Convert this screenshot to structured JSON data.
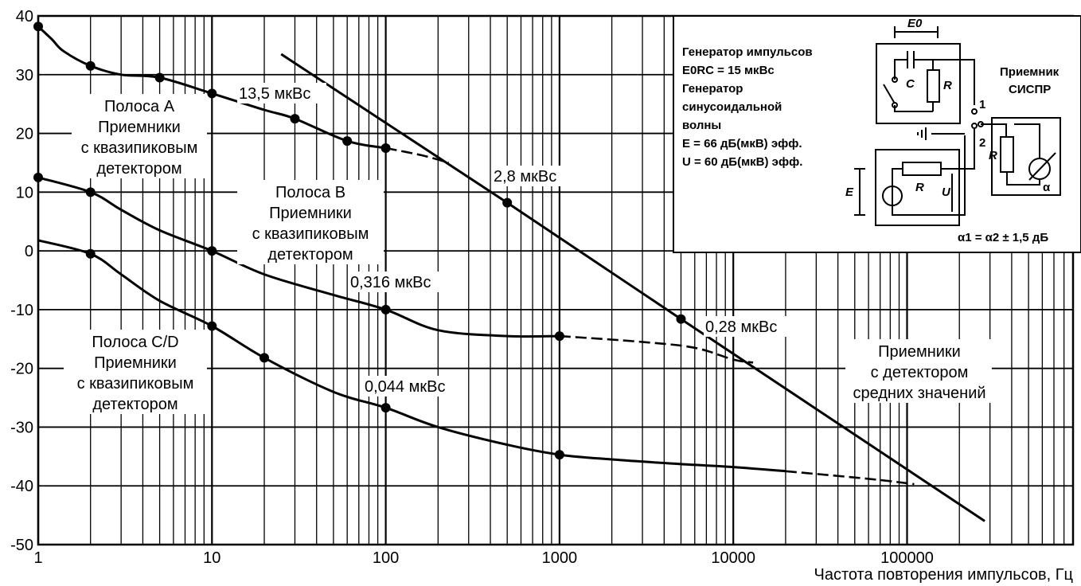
{
  "chart_data": {
    "type": "line",
    "x_scale": "log",
    "xlim": [
      1,
      1000000
    ],
    "ylim": [
      -50,
      40
    ],
    "grid": true,
    "xlabel": "Частота повторения импульсов, Гц",
    "ylabel": "",
    "x_ticks": [
      {
        "value": 1,
        "label": "1"
      },
      {
        "value": 10,
        "label": "10"
      },
      {
        "value": 100,
        "label": "100"
      },
      {
        "value": 1000,
        "label": "1000"
      },
      {
        "value": 10000,
        "label": "10000"
      },
      {
        "value": 100000,
        "label": "100000"
      }
    ],
    "y_ticks": [
      {
        "value": 40,
        "label": "40"
      },
      {
        "value": 30,
        "label": "30"
      },
      {
        "value": 20,
        "label": "20"
      },
      {
        "value": 10,
        "label": "10"
      },
      {
        "value": 0,
        "label": "0"
      },
      {
        "value": -10,
        "label": "-10"
      },
      {
        "value": -20,
        "label": "-20"
      },
      {
        "value": -30,
        "label": "-30"
      },
      {
        "value": -40,
        "label": "-40"
      },
      {
        "value": -50,
        "label": "-50"
      }
    ],
    "series": [
      {
        "name": "",
        "x": [
          1,
          1.2,
          1.4,
          2,
          3,
          5,
          10,
          20,
          30,
          60,
          100
        ],
        "y": [
          38.2,
          36,
          34,
          31.5,
          30,
          29.5,
          26.8,
          24,
          22.5,
          18.7,
          17.5
        ],
        "dashed_to": {
          "x": [
            100,
            160,
            230
          ],
          "y": [
            17.5,
            16.3,
            15
          ]
        },
        "markers_x": [
          1,
          2,
          5,
          10,
          30,
          60,
          100
        ],
        "markers_y": [
          38.2,
          31.5,
          29.5,
          26.8,
          22.5,
          18.7,
          17.5
        ]
      },
      {
        "name": "",
        "x": [
          1,
          2,
          3,
          5,
          10,
          20,
          50,
          100,
          200,
          500,
          1000
        ],
        "y": [
          12.5,
          10,
          7,
          3.5,
          0,
          -4,
          -7.5,
          -10,
          -13.5,
          -14.5,
          -14.5
        ],
        "dashed_to": {
          "x": [
            1000,
            3000,
            6000,
            10000,
            13000
          ],
          "y": [
            -14.5,
            -15.5,
            -16.5,
            -18.5,
            -19
          ]
        },
        "markers_x": [
          1,
          2,
          10,
          100,
          1000
        ],
        "markers_y": [
          12.5,
          10,
          0,
          -10,
          -14.5
        ]
      },
      {
        "name": "",
        "x": [
          1,
          2,
          3,
          5,
          10,
          20,
          50,
          100,
          200,
          500,
          1000,
          2000,
          5000,
          10000,
          20000
        ],
        "y": [
          1.8,
          -0.5,
          -4,
          -8.5,
          -12.8,
          -18.2,
          -24,
          -26.7,
          -30,
          -33,
          -34.7,
          -35.5,
          -36.3,
          -36.8,
          -37.5
        ],
        "dashed_to": {
          "x": [
            20000,
            60000,
            110000
          ],
          "y": [
            -37.5,
            -38.8,
            -39.7
          ]
        },
        "markers_x": [
          2,
          10,
          20,
          100,
          1000
        ],
        "markers_y": [
          -0.5,
          -12.8,
          -18.2,
          -26.7,
          -34.7
        ]
      },
      {
        "name": "Приемники с детектором средних значений",
        "x": [
          25,
          500,
          5000,
          280000
        ],
        "y": [
          33.5,
          8.2,
          -11.6,
          -46
        ],
        "markers_x": [
          500,
          5000
        ],
        "markers_y": [
          8.2,
          -11.6
        ]
      }
    ],
    "annotations": [
      {
        "id": "pulse-a",
        "text": "13,5 мкВс"
      },
      {
        "id": "pulse-b",
        "text": "0,316 мкВс"
      },
      {
        "id": "pulse-c",
        "text": "0,044 мкВс"
      },
      {
        "id": "pulse-avg1",
        "text": "2,8 мкВс"
      },
      {
        "id": "pulse-avg2",
        "text": "0,28 мкВс"
      }
    ],
    "band_labels": {
      "a": [
        "Полоса А",
        "Приемники",
        "с квазипиковым",
        "детектором"
      ],
      "b": [
        "Полоса В",
        "Приемники",
        "с квазипиковым",
        "детектором"
      ],
      "cd": [
        "Полоса С/D",
        "Приемники",
        "с квазипиковым",
        "детектором"
      ],
      "avg": [
        "Приемники",
        "с детектором",
        "средних значений"
      ]
    }
  },
  "legend_box": {
    "lines": [
      "Генератор импульсов",
      "E0RC = 15 мкВс",
      "Генератор",
      "синусоидальной",
      "волны",
      "E = 66 дБ(мкВ) эфф.",
      "U = 60 дБ(мкВ) эфф."
    ],
    "receiver_label": [
      "Приемник",
      "СИСПР"
    ],
    "circuit_labels": {
      "e0": "E0",
      "c": "C",
      "r1": "R",
      "r2": "R",
      "r3": "R",
      "e": "E",
      "u": "U",
      "pos1": "1",
      "pos2": "2",
      "alpha": "α"
    },
    "equation": "α1 = α2 ± 1,5 дБ"
  }
}
